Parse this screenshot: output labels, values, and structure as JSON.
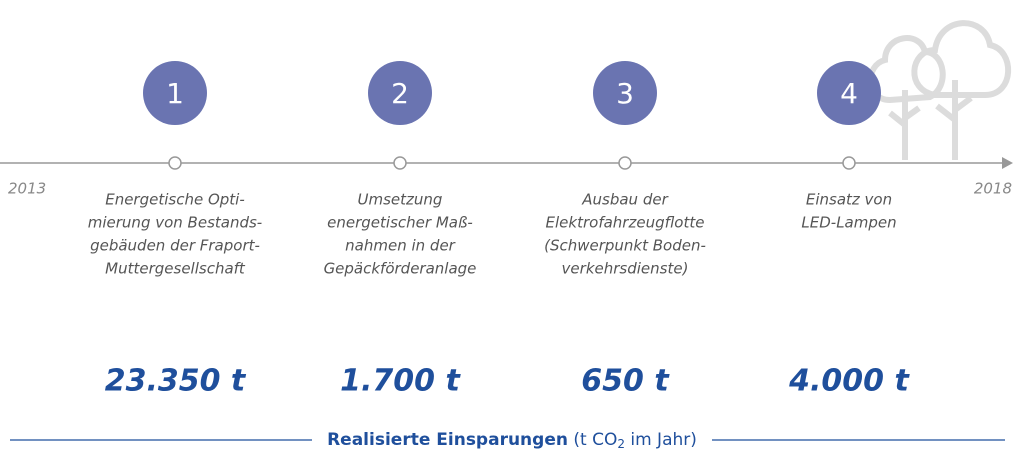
{
  "timeline": {
    "start": "2013",
    "end": "2018"
  },
  "steps": [
    {
      "number": "1",
      "description": [
        "Energetische Opti-",
        "mierung von Bestands-",
        "gebäuden der Fraport-",
        "Muttergesellschaft"
      ],
      "amount": "23.350 t"
    },
    {
      "number": "2",
      "description": [
        "Umsetzung",
        "energetischer Maß-",
        "nahmen in der",
        "Gepäckförderanlage"
      ],
      "amount": "1.700 t"
    },
    {
      "number": "3",
      "description": [
        "Ausbau der",
        "Elektrofahrzeugflotte",
        "(Schwerpunkt Boden-",
        "verkehrsdienste)"
      ],
      "amount": "650 t"
    },
    {
      "number": "4",
      "description": [
        "Einsatz von",
        "LED-Lampen"
      ],
      "amount": "4.000 t"
    }
  ],
  "footer": {
    "label": "Realisierte Einsparungen",
    "unit_before": "(t CO",
    "unit_sub": "2",
    "unit_after": " im Jahr)"
  }
}
